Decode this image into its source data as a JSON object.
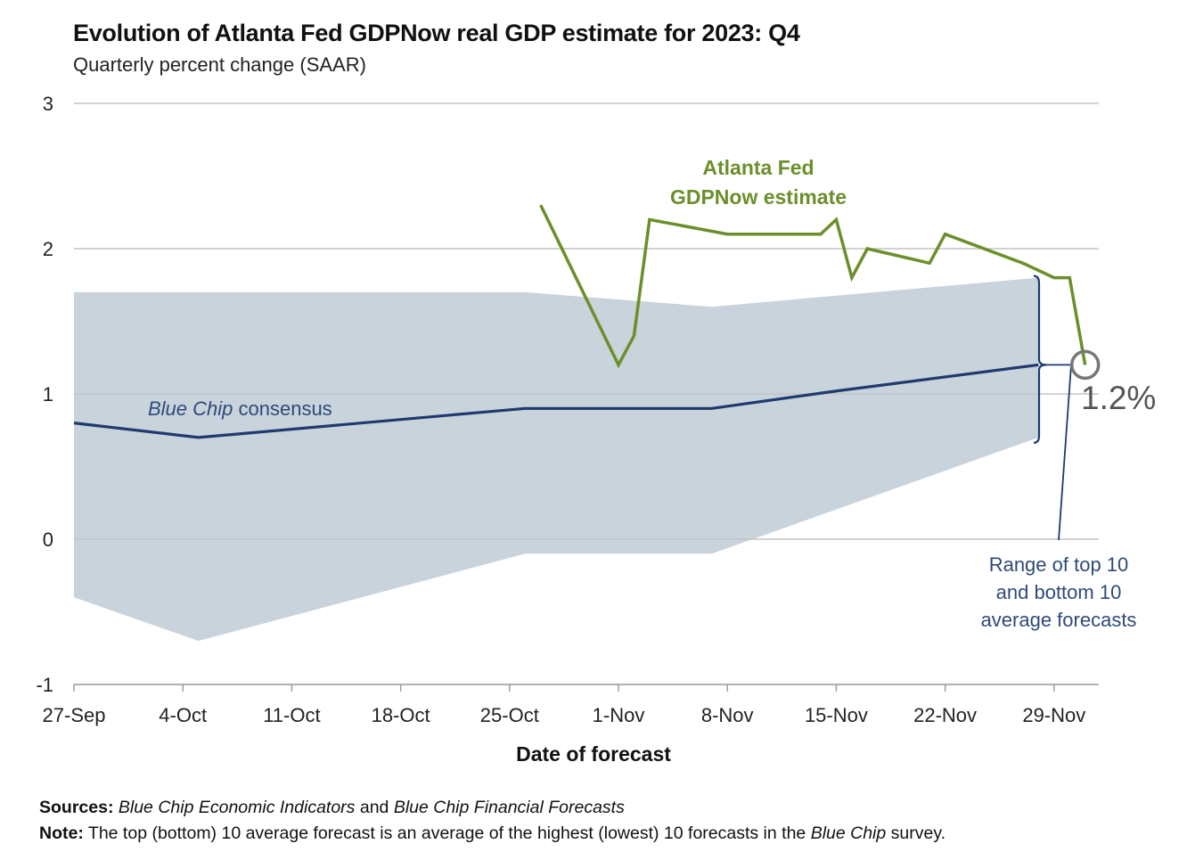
{
  "title": "Evolution of Atlanta Fed GDPNow real GDP estimate for 2023: Q4",
  "subtitle": "Quarterly percent change (SAAR)",
  "footer": {
    "sources_label": "Sources:",
    "sources_italic_1": "Blue Chip Economic Indicators",
    "sources_and": "and",
    "sources_italic_2": "Blue Chip Financial Forecasts",
    "note_label": "Note:",
    "note_text_1": "The top (bottom) 10 average forecast is an average of the highest (lowest) 10 forecasts in the",
    "note_italic": "Blue Chip",
    "note_text_2": "survey."
  },
  "chart_data": {
    "type": "line",
    "xlabel": "Date of forecast",
    "ylabel": "",
    "ylim": [
      -1,
      3
    ],
    "yticks": [
      "3",
      "2",
      "1",
      "0",
      "-1"
    ],
    "yticks_values": [
      3,
      2,
      1,
      0,
      -1
    ],
    "xlim": [
      "2023-09-27",
      "2023-12-01"
    ],
    "xticks": [
      "27-Sep",
      "4-Oct",
      "11-Oct",
      "18-Oct",
      "25-Oct",
      "1-Nov",
      "8-Nov",
      "15-Nov",
      "22-Nov",
      "29-Nov"
    ],
    "xticks_dates": [
      "2023-09-27",
      "2023-10-04",
      "2023-10-11",
      "2023-10-18",
      "2023-10-25",
      "2023-11-01",
      "2023-11-08",
      "2023-11-15",
      "2023-11-22",
      "2023-11-29"
    ],
    "grid": true,
    "colors": {
      "gdpnow": "#6b8f2a",
      "consensus": "#1f3a6e",
      "range_fill": "#c9d3dc",
      "grid": "#c4c4c4",
      "callout": "#777777"
    },
    "range": {
      "dates": [
        "2023-09-27",
        "2023-10-05",
        "2023-10-26",
        "2023-11-07",
        "2023-11-28"
      ],
      "upper": [
        1.7,
        1.7,
        1.7,
        1.6,
        1.8
      ],
      "lower": [
        -0.4,
        -0.7,
        -0.1,
        -0.1,
        0.7
      ]
    },
    "series": [
      {
        "key": "gdpnow",
        "x": [
          "2023-10-27",
          "2023-11-01",
          "2023-11-02",
          "2023-11-03",
          "2023-11-08",
          "2023-11-14",
          "2023-11-15",
          "2023-11-16",
          "2023-11-17",
          "2023-11-21",
          "2023-11-22",
          "2023-11-27",
          "2023-11-29",
          "2023-11-30",
          "2023-12-01"
        ],
        "y": [
          2.3,
          1.2,
          1.4,
          2.2,
          2.1,
          2.1,
          2.2,
          1.8,
          2.0,
          1.9,
          2.1,
          1.9,
          1.8,
          1.8,
          1.2
        ]
      },
      {
        "key": "consensus",
        "x": [
          "2023-09-27",
          "2023-10-05",
          "2023-10-26",
          "2023-11-07",
          "2023-11-15",
          "2023-11-28"
        ],
        "y": [
          0.8,
          0.7,
          0.9,
          0.9,
          1.02,
          1.2
        ]
      }
    ],
    "annotations": {
      "gdpnow_label": [
        "Atlanta Fed",
        "GDPNow estimate"
      ],
      "consensus_label_italic": "Blue Chip",
      "consensus_label_rest": "consensus",
      "latest_value": "1.2%",
      "range_label": [
        "Range of top 10",
        "and bottom 10",
        "average forecasts"
      ]
    }
  }
}
